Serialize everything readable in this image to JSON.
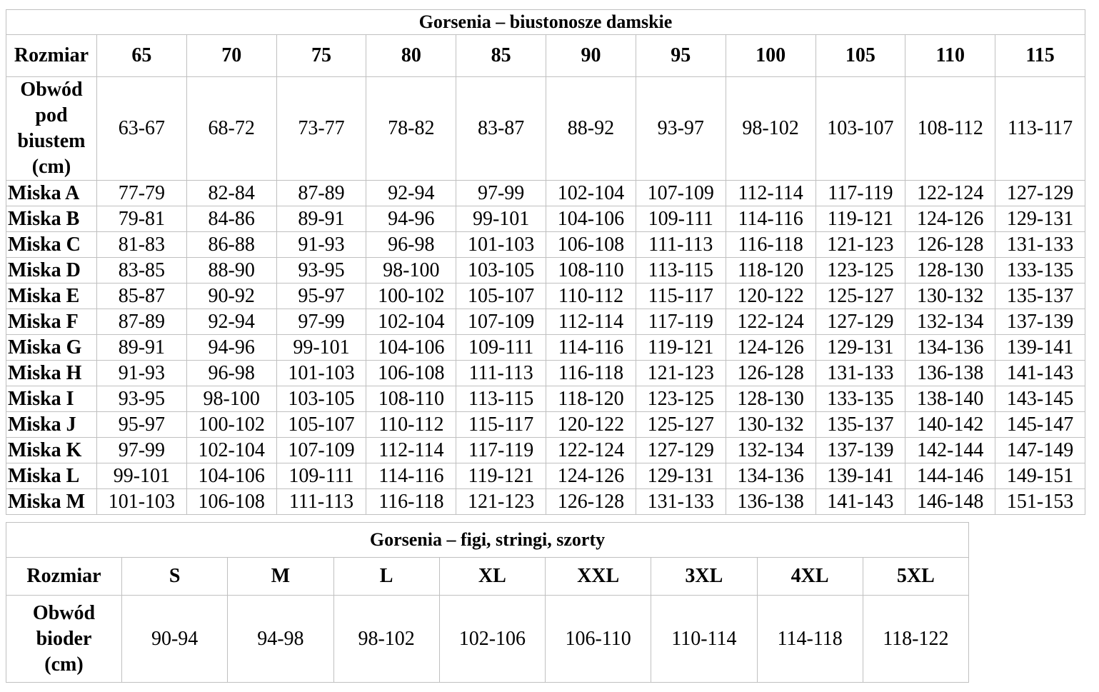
{
  "bra_table": {
    "title": "Gorsenia – biustonosze damskie",
    "size_label": "Rozmiar",
    "sizes": [
      "65",
      "70",
      "75",
      "80",
      "85",
      "90",
      "95",
      "100",
      "105",
      "110",
      "115"
    ],
    "underbust_label": [
      "Obwód",
      "pod",
      "biustem",
      "(cm)"
    ],
    "underbust": [
      "63-67",
      "68-72",
      "73-77",
      "78-82",
      "83-87",
      "88-92",
      "93-97",
      "98-102",
      "103-107",
      "108-112",
      "113-117"
    ],
    "cups": [
      {
        "label": "Miska A",
        "values": [
          "77-79",
          "82-84",
          "87-89",
          "92-94",
          "97-99",
          "102-104",
          "107-109",
          "112-114",
          "117-119",
          "122-124",
          "127-129"
        ]
      },
      {
        "label": "Miska B",
        "values": [
          "79-81",
          "84-86",
          "89-91",
          "94-96",
          "99-101",
          "104-106",
          "109-111",
          "114-116",
          "119-121",
          "124-126",
          "129-131"
        ]
      },
      {
        "label": "Miska C",
        "values": [
          "81-83",
          "86-88",
          "91-93",
          "96-98",
          "101-103",
          "106-108",
          "111-113",
          "116-118",
          "121-123",
          "126-128",
          "131-133"
        ]
      },
      {
        "label": "Miska D",
        "values": [
          "83-85",
          "88-90",
          "93-95",
          "98-100",
          "103-105",
          "108-110",
          "113-115",
          "118-120",
          "123-125",
          "128-130",
          "133-135"
        ]
      },
      {
        "label": "Miska E",
        "values": [
          "85-87",
          "90-92",
          "95-97",
          "100-102",
          "105-107",
          "110-112",
          "115-117",
          "120-122",
          "125-127",
          "130-132",
          "135-137"
        ]
      },
      {
        "label": "Miska F",
        "values": [
          "87-89",
          "92-94",
          "97-99",
          "102-104",
          "107-109",
          "112-114",
          "117-119",
          "122-124",
          "127-129",
          "132-134",
          "137-139"
        ]
      },
      {
        "label": "Miska G",
        "values": [
          "89-91",
          "94-96",
          "99-101",
          "104-106",
          "109-111",
          "114-116",
          "119-121",
          "124-126",
          "129-131",
          "134-136",
          "139-141"
        ]
      },
      {
        "label": "Miska H",
        "values": [
          "91-93",
          "96-98",
          "101-103",
          "106-108",
          "111-113",
          "116-118",
          "121-123",
          "126-128",
          "131-133",
          "136-138",
          "141-143"
        ]
      },
      {
        "label": "Miska I",
        "values": [
          "93-95",
          "98-100",
          "103-105",
          "108-110",
          "113-115",
          "118-120",
          "123-125",
          "128-130",
          "133-135",
          "138-140",
          "143-145"
        ]
      },
      {
        "label": "Miska J",
        "values": [
          "95-97",
          "100-102",
          "105-107",
          "110-112",
          "115-117",
          "120-122",
          "125-127",
          "130-132",
          "135-137",
          "140-142",
          "145-147"
        ]
      },
      {
        "label": "Miska K",
        "values": [
          "97-99",
          "102-104",
          "107-109",
          "112-114",
          "117-119",
          "122-124",
          "127-129",
          "132-134",
          "137-139",
          "142-144",
          "147-149"
        ]
      },
      {
        "label": "Miska L",
        "values": [
          "99-101",
          "104-106",
          "109-111",
          "114-116",
          "119-121",
          "124-126",
          "129-131",
          "134-136",
          "139-141",
          "144-146",
          "149-151"
        ]
      },
      {
        "label": "Miska M",
        "values": [
          "101-103",
          "106-108",
          "111-113",
          "116-118",
          "121-123",
          "126-128",
          "131-133",
          "136-138",
          "141-143",
          "146-148",
          "151-153"
        ]
      }
    ]
  },
  "briefs_table": {
    "title": "Gorsenia – figi, stringi, szorty",
    "size_label": "Rozmiar",
    "sizes": [
      "S",
      "M",
      "L",
      "XL",
      "XXL",
      "3XL",
      "4XL",
      "5XL"
    ],
    "hip_label": [
      "Obwód",
      "bioder",
      "(cm)"
    ],
    "hips": [
      "90-94",
      "94-98",
      "98-102",
      "102-106",
      "106-110",
      "110-114",
      "114-118",
      "118-122"
    ]
  }
}
